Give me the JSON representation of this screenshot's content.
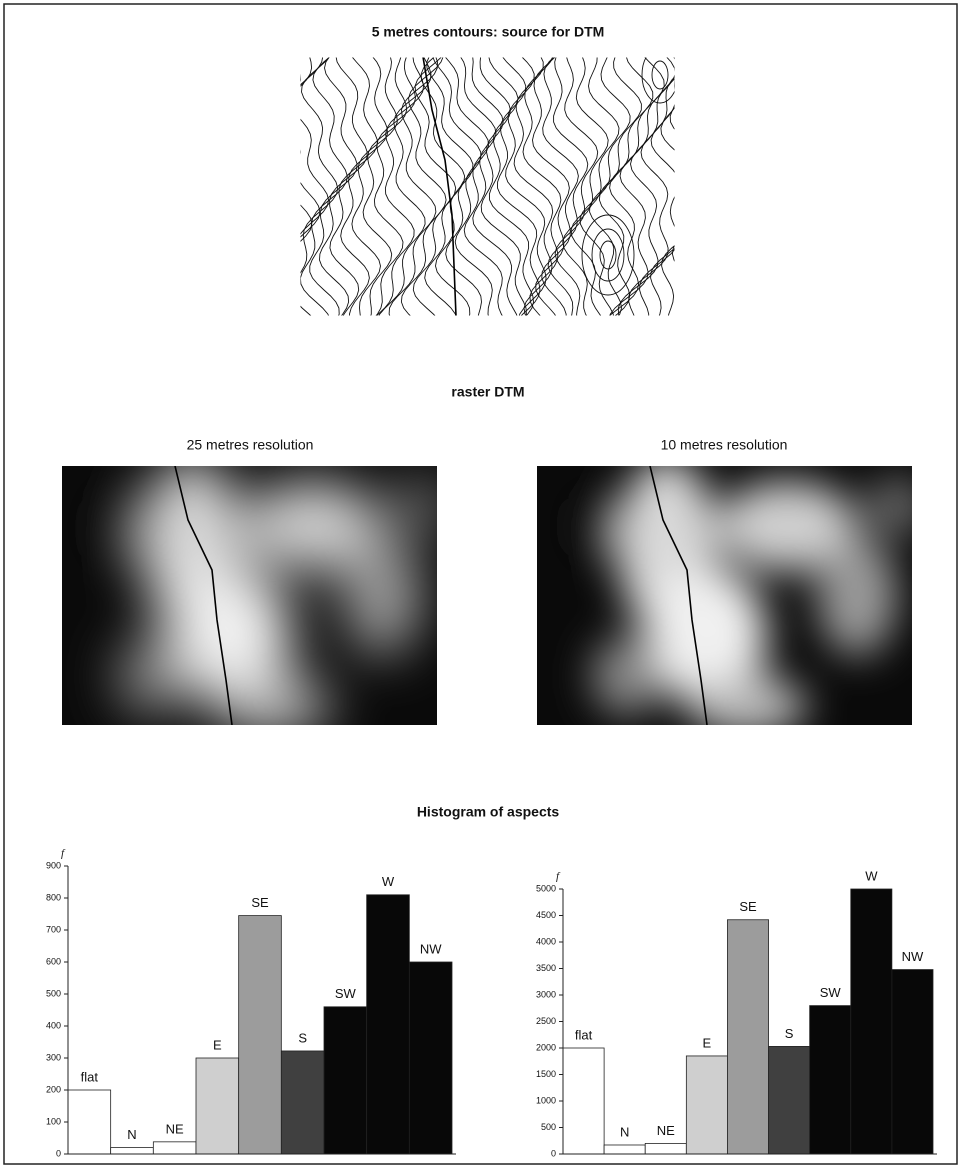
{
  "figure_title": "5 metres contours: source for DTM",
  "raster_title": "raster DTM",
  "raster_panels": [
    "25 metres resolution",
    "10 metres resolution"
  ],
  "histogram_title": "Histogram of aspects",
  "chart_data": [
    {
      "type": "bar",
      "ylabel": "f",
      "categories": [
        "flat",
        "N",
        "NE",
        "E",
        "SE",
        "S",
        "SW",
        "W",
        "NW"
      ],
      "values": [
        200,
        20,
        38,
        300,
        745,
        322,
        460,
        810,
        600
      ],
      "colors": [
        "#ffffff",
        "#ffffff",
        "#ffffff",
        "#cfcfcf",
        "#9c9c9c",
        "#404040",
        "#080808",
        "#080808",
        "#080808"
      ],
      "ylim": [
        0,
        900
      ],
      "yticks": [
        0,
        100,
        200,
        300,
        400,
        500,
        600,
        700,
        800,
        900
      ]
    },
    {
      "type": "bar",
      "ylabel": "f",
      "categories": [
        "flat",
        "N",
        "NE",
        "E",
        "SE",
        "S",
        "SW",
        "W",
        "NW"
      ],
      "values": [
        2000,
        170,
        200,
        1850,
        4420,
        2030,
        2800,
        5000,
        3480
      ],
      "colors": [
        "#ffffff",
        "#ffffff",
        "#ffffff",
        "#cfcfcf",
        "#9c9c9c",
        "#404040",
        "#080808",
        "#080808",
        "#080808"
      ],
      "ylim": [
        0,
        5000
      ],
      "yticks": [
        0,
        500,
        1000,
        1500,
        2000,
        2500,
        3000,
        3500,
        4000,
        4500,
        5000
      ]
    }
  ]
}
